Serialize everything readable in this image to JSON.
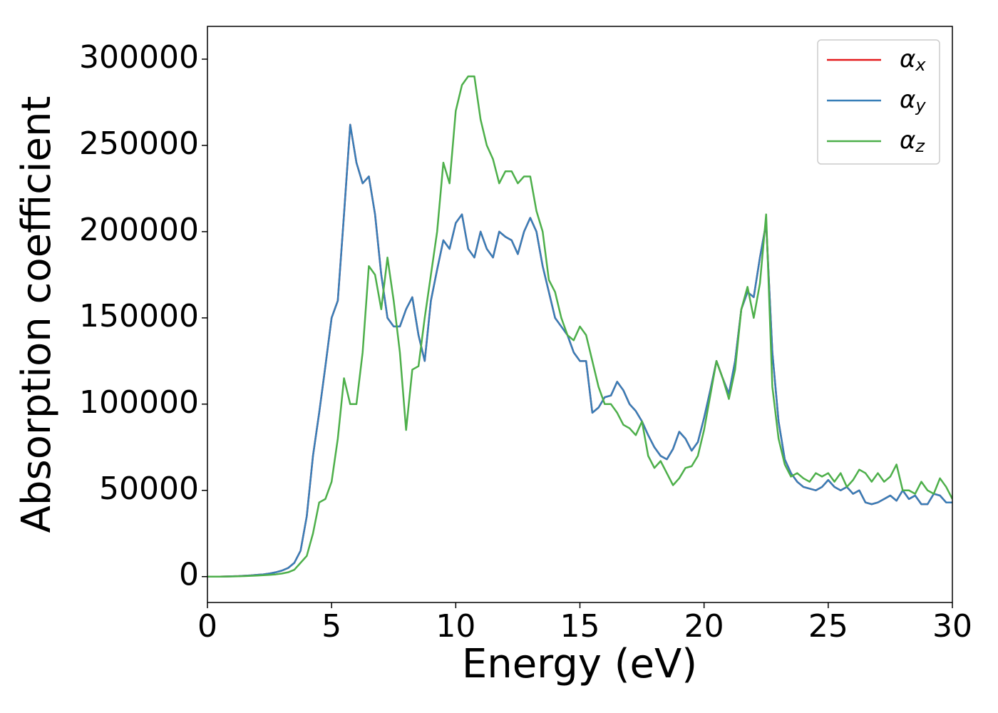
{
  "chart_data": {
    "type": "line",
    "xlabel": "Energy (eV)",
    "ylabel": "Absorption coefficient",
    "x": [
      0,
      0.25,
      0.5,
      0.75,
      1,
      1.25,
      1.5,
      1.75,
      2,
      2.25,
      2.5,
      2.75,
      3,
      3.25,
      3.5,
      3.75,
      4,
      4.25,
      4.5,
      4.75,
      5,
      5.25,
      5.5,
      5.75,
      6,
      6.25,
      6.5,
      6.75,
      7,
      7.25,
      7.5,
      7.75,
      8,
      8.25,
      8.5,
      8.75,
      9,
      9.25,
      9.5,
      9.75,
      10,
      10.25,
      10.5,
      10.75,
      11,
      11.25,
      11.5,
      11.75,
      12,
      12.25,
      12.5,
      12.75,
      13,
      13.25,
      13.5,
      13.75,
      14,
      14.25,
      14.5,
      14.75,
      15,
      15.25,
      15.5,
      15.75,
      16,
      16.25,
      16.5,
      16.75,
      17,
      17.25,
      17.5,
      17.75,
      18,
      18.25,
      18.5,
      18.75,
      19,
      19.25,
      19.5,
      19.75,
      20,
      20.25,
      20.5,
      20.75,
      21,
      21.25,
      21.5,
      21.75,
      22,
      22.25,
      22.5,
      22.75,
      23,
      23.25,
      23.5,
      23.75,
      24,
      24.25,
      24.5,
      24.75,
      25,
      25.25,
      25.5,
      25.75,
      26,
      26.25,
      26.5,
      26.75,
      27,
      27.25,
      27.5,
      27.75,
      28,
      28.25,
      28.5,
      28.75,
      29,
      29.25,
      29.5,
      29.75,
      30
    ],
    "series": [
      {
        "name": "αx",
        "color": "#e41a1c",
        "values": [
          0,
          0,
          0,
          100,
          200,
          300,
          500,
          700,
          1000,
          1300,
          1800,
          2500,
          3500,
          5000,
          8000,
          15000,
          35000,
          70000,
          95000,
          122000,
          150000,
          160000,
          210000,
          262000,
          240000,
          228000,
          232000,
          210000,
          175000,
          150000,
          145000,
          145000,
          155000,
          162000,
          140000,
          125000,
          160000,
          178000,
          195000,
          190000,
          205000,
          210000,
          190000,
          185000,
          200000,
          190000,
          185000,
          200000,
          197000,
          195000,
          187000,
          200000,
          208000,
          200000,
          180000,
          165000,
          150000,
          145000,
          140000,
          130000,
          125000,
          125000,
          95000,
          98000,
          104000,
          105000,
          113000,
          108000,
          100000,
          96000,
          90000,
          82000,
          75000,
          70000,
          68000,
          74000,
          84000,
          80000,
          73000,
          78000,
          92000,
          108000,
          125000,
          115000,
          106000,
          125000,
          155000,
          165000,
          162000,
          185000,
          205000,
          130000,
          90000,
          68000,
          60000,
          55000,
          52000,
          51000,
          50000,
          52000,
          56000,
          52000,
          50000,
          52000,
          48000,
          50000,
          43000,
          42000,
          43000,
          45000,
          47000,
          44000,
          50000,
          45000,
          47000,
          42000,
          42000,
          48000,
          47000,
          43000,
          43000
        ]
      },
      {
        "name": "αy",
        "color": "#377eb8",
        "values": [
          0,
          0,
          0,
          100,
          200,
          300,
          500,
          700,
          1000,
          1300,
          1800,
          2500,
          3500,
          5000,
          8000,
          15000,
          35000,
          70000,
          95000,
          122000,
          150000,
          160000,
          210000,
          262000,
          240000,
          228000,
          232000,
          210000,
          175000,
          150000,
          145000,
          145000,
          155000,
          162000,
          140000,
          125000,
          160000,
          178000,
          195000,
          190000,
          205000,
          210000,
          190000,
          185000,
          200000,
          190000,
          185000,
          200000,
          197000,
          195000,
          187000,
          200000,
          208000,
          200000,
          180000,
          165000,
          150000,
          145000,
          140000,
          130000,
          125000,
          125000,
          95000,
          98000,
          104000,
          105000,
          113000,
          108000,
          100000,
          96000,
          90000,
          82000,
          75000,
          70000,
          68000,
          74000,
          84000,
          80000,
          73000,
          78000,
          92000,
          108000,
          125000,
          115000,
          106000,
          125000,
          155000,
          165000,
          162000,
          185000,
          205000,
          130000,
          90000,
          68000,
          60000,
          55000,
          52000,
          51000,
          50000,
          52000,
          56000,
          52000,
          50000,
          52000,
          48000,
          50000,
          43000,
          42000,
          43000,
          45000,
          47000,
          44000,
          50000,
          45000,
          47000,
          42000,
          42000,
          48000,
          47000,
          43000,
          43000
        ]
      },
      {
        "name": "αz",
        "color": "#4daf4a",
        "values": [
          0,
          0,
          0,
          50,
          100,
          200,
          300,
          450,
          600,
          800,
          1000,
          1300,
          1800,
          2500,
          4000,
          8000,
          12000,
          25000,
          43000,
          45000,
          55000,
          80000,
          115000,
          100000,
          100000,
          130000,
          180000,
          175000,
          155000,
          185000,
          160000,
          130000,
          85000,
          120000,
          122000,
          150000,
          175000,
          200000,
          240000,
          228000,
          270000,
          285000,
          290000,
          290000,
          265000,
          250000,
          242000,
          228000,
          235000,
          235000,
          228000,
          232000,
          232000,
          212000,
          200000,
          172000,
          165000,
          150000,
          140000,
          137000,
          145000,
          140000,
          125000,
          110000,
          100000,
          100000,
          95000,
          88000,
          86000,
          82000,
          90000,
          70000,
          63000,
          67000,
          60000,
          53000,
          57000,
          63000,
          64000,
          70000,
          85000,
          105000,
          125000,
          115000,
          103000,
          120000,
          155000,
          168000,
          150000,
          170000,
          210000,
          110000,
          80000,
          65000,
          58000,
          60000,
          57000,
          55000,
          60000,
          58000,
          60000,
          55000,
          60000,
          52000,
          56000,
          62000,
          60000,
          55000,
          60000,
          55000,
          58000,
          65000,
          50000,
          50000,
          48000,
          55000,
          50000,
          48000,
          57000,
          52000,
          45000
        ]
      }
    ],
    "xlim": [
      0,
      30
    ],
    "xticks": [
      0,
      5,
      10,
      15,
      20,
      25,
      30
    ],
    "ylim": [
      -15000,
      319000
    ],
    "yticks": [
      0,
      50000,
      100000,
      150000,
      200000,
      250000,
      300000
    ],
    "grid": false,
    "legend": "upper right"
  }
}
